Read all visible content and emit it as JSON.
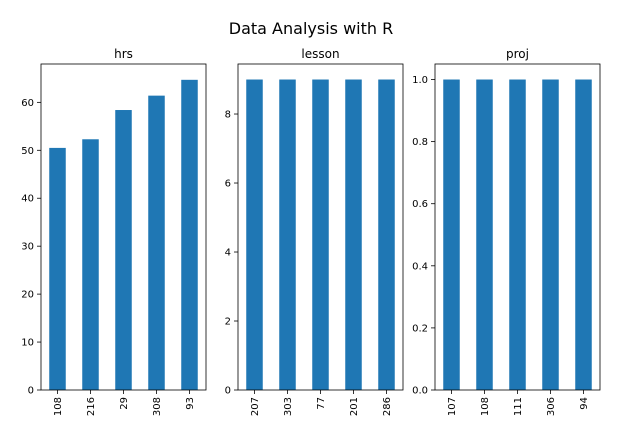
{
  "figure": {
    "suptitle": "Data Analysis with R",
    "bar_color": "#1f77b4",
    "background": "#ffffff"
  },
  "chart_data": [
    {
      "type": "bar",
      "title": "hrs",
      "categories": [
        "108",
        "216",
        "29",
        "308",
        "93"
      ],
      "values": [
        50.5,
        52.3,
        58.4,
        61.4,
        64.7
      ],
      "ylim": [
        0,
        68
      ],
      "yticks": [
        0,
        10,
        20,
        30,
        40,
        50,
        60
      ],
      "ytick_labels": [
        "0",
        "10",
        "20",
        "30",
        "40",
        "50",
        "60"
      ],
      "xlabel": "",
      "ylabel": "",
      "grid": false,
      "legend": false
    },
    {
      "type": "bar",
      "title": "lesson",
      "categories": [
        "207",
        "303",
        "77",
        "201",
        "286"
      ],
      "values": [
        9,
        9,
        9,
        9,
        9
      ],
      "ylim": [
        0,
        9.45
      ],
      "yticks": [
        0,
        2,
        4,
        6,
        8
      ],
      "ytick_labels": [
        "0",
        "2",
        "4",
        "6",
        "8"
      ],
      "xlabel": "",
      "ylabel": "",
      "grid": false,
      "legend": false
    },
    {
      "type": "bar",
      "title": "proj",
      "categories": [
        "107",
        "108",
        "111",
        "306",
        "94"
      ],
      "values": [
        1,
        1,
        1,
        1,
        1
      ],
      "ylim": [
        0,
        1.05
      ],
      "yticks": [
        0,
        0.2,
        0.4,
        0.6,
        0.8,
        1.0
      ],
      "ytick_labels": [
        "0.0",
        "0.2",
        "0.4",
        "0.6",
        "0.8",
        "1.0"
      ],
      "xlabel": "",
      "ylabel": "",
      "grid": false,
      "legend": false
    }
  ]
}
